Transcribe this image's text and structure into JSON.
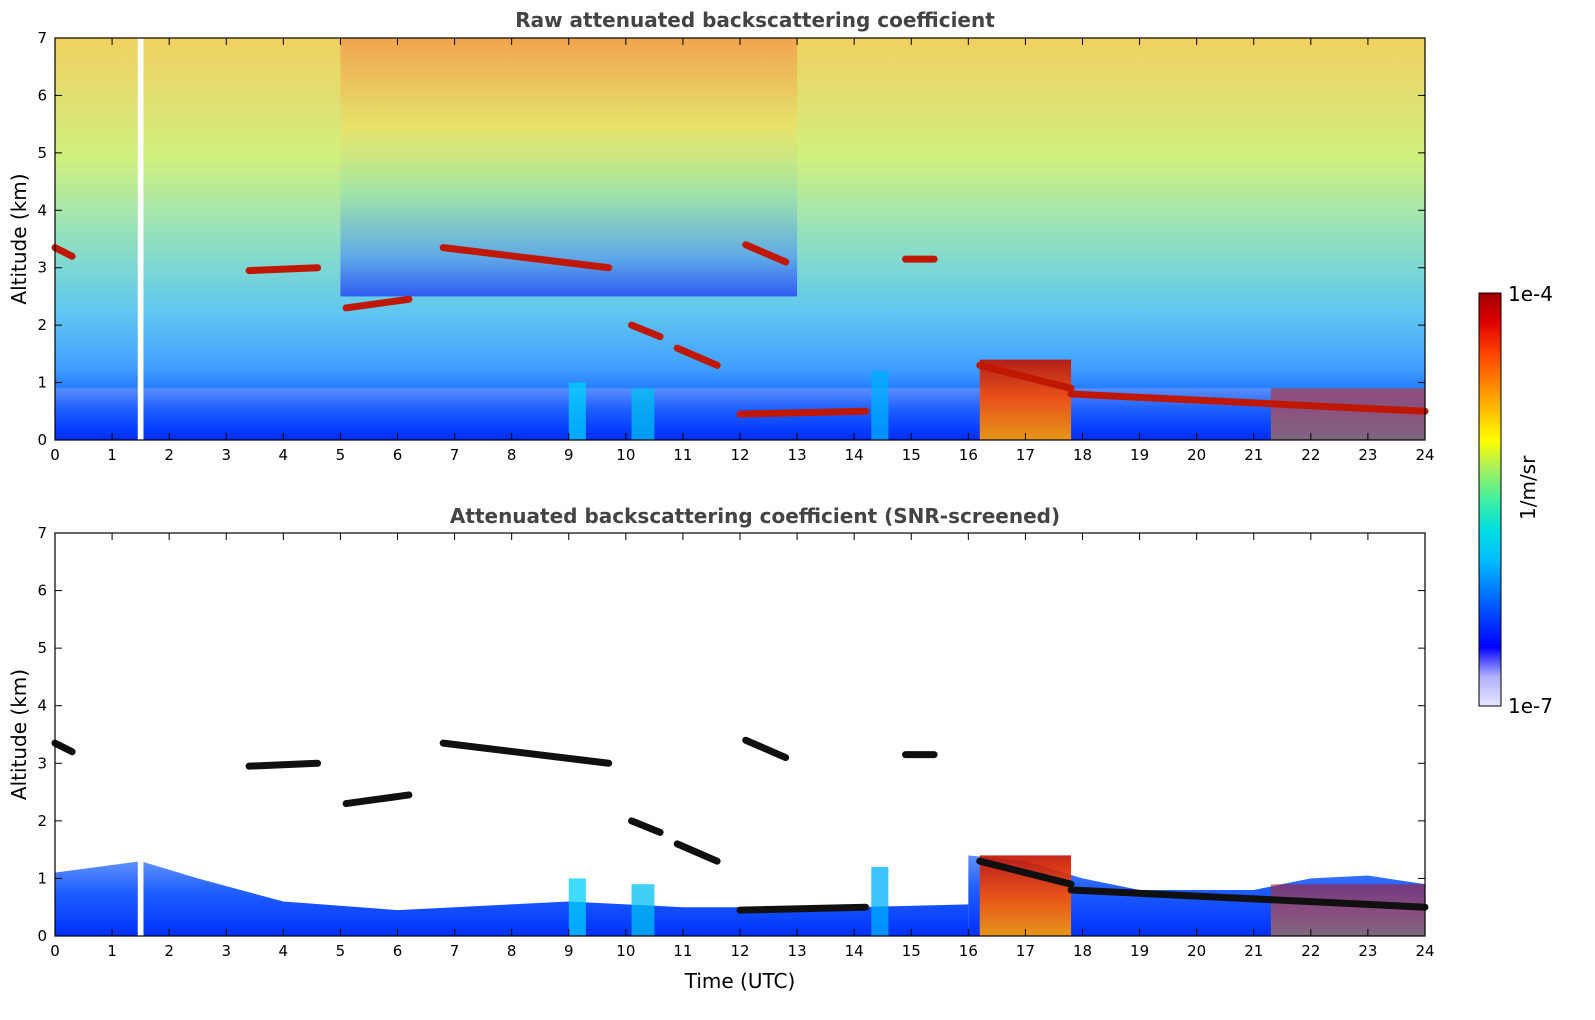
{
  "colorbar": {
    "max_label": "1e-4",
    "min_label": "1e-7",
    "unit_label": "1/m/sr",
    "colors": [
      "#e6e6ff",
      "#b0b0ff",
      "#0000ff",
      "#0040ff",
      "#0080ff",
      "#00c0ff",
      "#00e0e0",
      "#40f0a0",
      "#a0f060",
      "#ffff00",
      "#ffc000",
      "#ff8000",
      "#ff4000",
      "#e00000",
      "#a00000"
    ]
  },
  "chart_data": [
    {
      "type": "heatmap",
      "title": "Raw attenuated backscattering coefficient",
      "xlabel": "",
      "ylabel": "Altitude (km)",
      "xlim": [
        0,
        24
      ],
      "ylim": [
        0,
        7
      ],
      "xticks": [
        "0",
        "1",
        "2",
        "3",
        "4",
        "5",
        "6",
        "7",
        "8",
        "9",
        "10",
        "11",
        "12",
        "13",
        "14",
        "15",
        "16",
        "17",
        "18",
        "19",
        "20",
        "21",
        "22",
        "23",
        "24"
      ],
      "yticks": [
        "0",
        "1",
        "2",
        "3",
        "4",
        "5",
        "6",
        "7"
      ],
      "color_scale": "log",
      "colorbar_range": [
        "1e-7",
        "1e-4"
      ],
      "cloud_layers": [
        {
          "x": [
            0,
            0.3
          ],
          "y": [
            3.35,
            3.2
          ]
        },
        {
          "x": [
            3.4,
            4.6
          ],
          "y": [
            2.95,
            3.0
          ]
        },
        {
          "x": [
            5.1,
            6.2
          ],
          "y": [
            2.3,
            2.45
          ]
        },
        {
          "x": [
            6.8,
            9.7
          ],
          "y": [
            3.35,
            3.0
          ]
        },
        {
          "x": [
            10.1,
            10.6
          ],
          "y": [
            2.0,
            1.8
          ]
        },
        {
          "x": [
            10.9,
            11.6
          ],
          "y": [
            1.6,
            1.3
          ]
        },
        {
          "x": [
            12.1,
            12.8
          ],
          "y": [
            3.4,
            3.1
          ]
        },
        {
          "x": [
            14.9,
            15.4
          ],
          "y": [
            3.15,
            3.15
          ]
        },
        {
          "x": [
            12.0,
            14.2
          ],
          "y": [
            0.45,
            0.5
          ]
        },
        {
          "x": [
            16.2,
            17.8
          ],
          "y": [
            1.3,
            0.9
          ]
        },
        {
          "x": [
            17.8,
            24.0
          ],
          "y": [
            0.8,
            0.5
          ]
        }
      ]
    },
    {
      "type": "heatmap",
      "title": "Attenuated backscattering coefficient (SNR-screened)",
      "xlabel": "Time (UTC)",
      "ylabel": "Altitude (km)",
      "xlim": [
        0,
        24
      ],
      "ylim": [
        0,
        7
      ],
      "xticks": [
        "0",
        "1",
        "2",
        "3",
        "4",
        "5",
        "6",
        "7",
        "8",
        "9",
        "10",
        "11",
        "12",
        "13",
        "14",
        "15",
        "16",
        "17",
        "18",
        "19",
        "20",
        "21",
        "22",
        "23",
        "24"
      ],
      "yticks": [
        "0",
        "1",
        "2",
        "3",
        "4",
        "5",
        "6",
        "7"
      ],
      "color_scale": "log",
      "colorbar_range": [
        "1e-7",
        "1e-4"
      ]
    }
  ]
}
